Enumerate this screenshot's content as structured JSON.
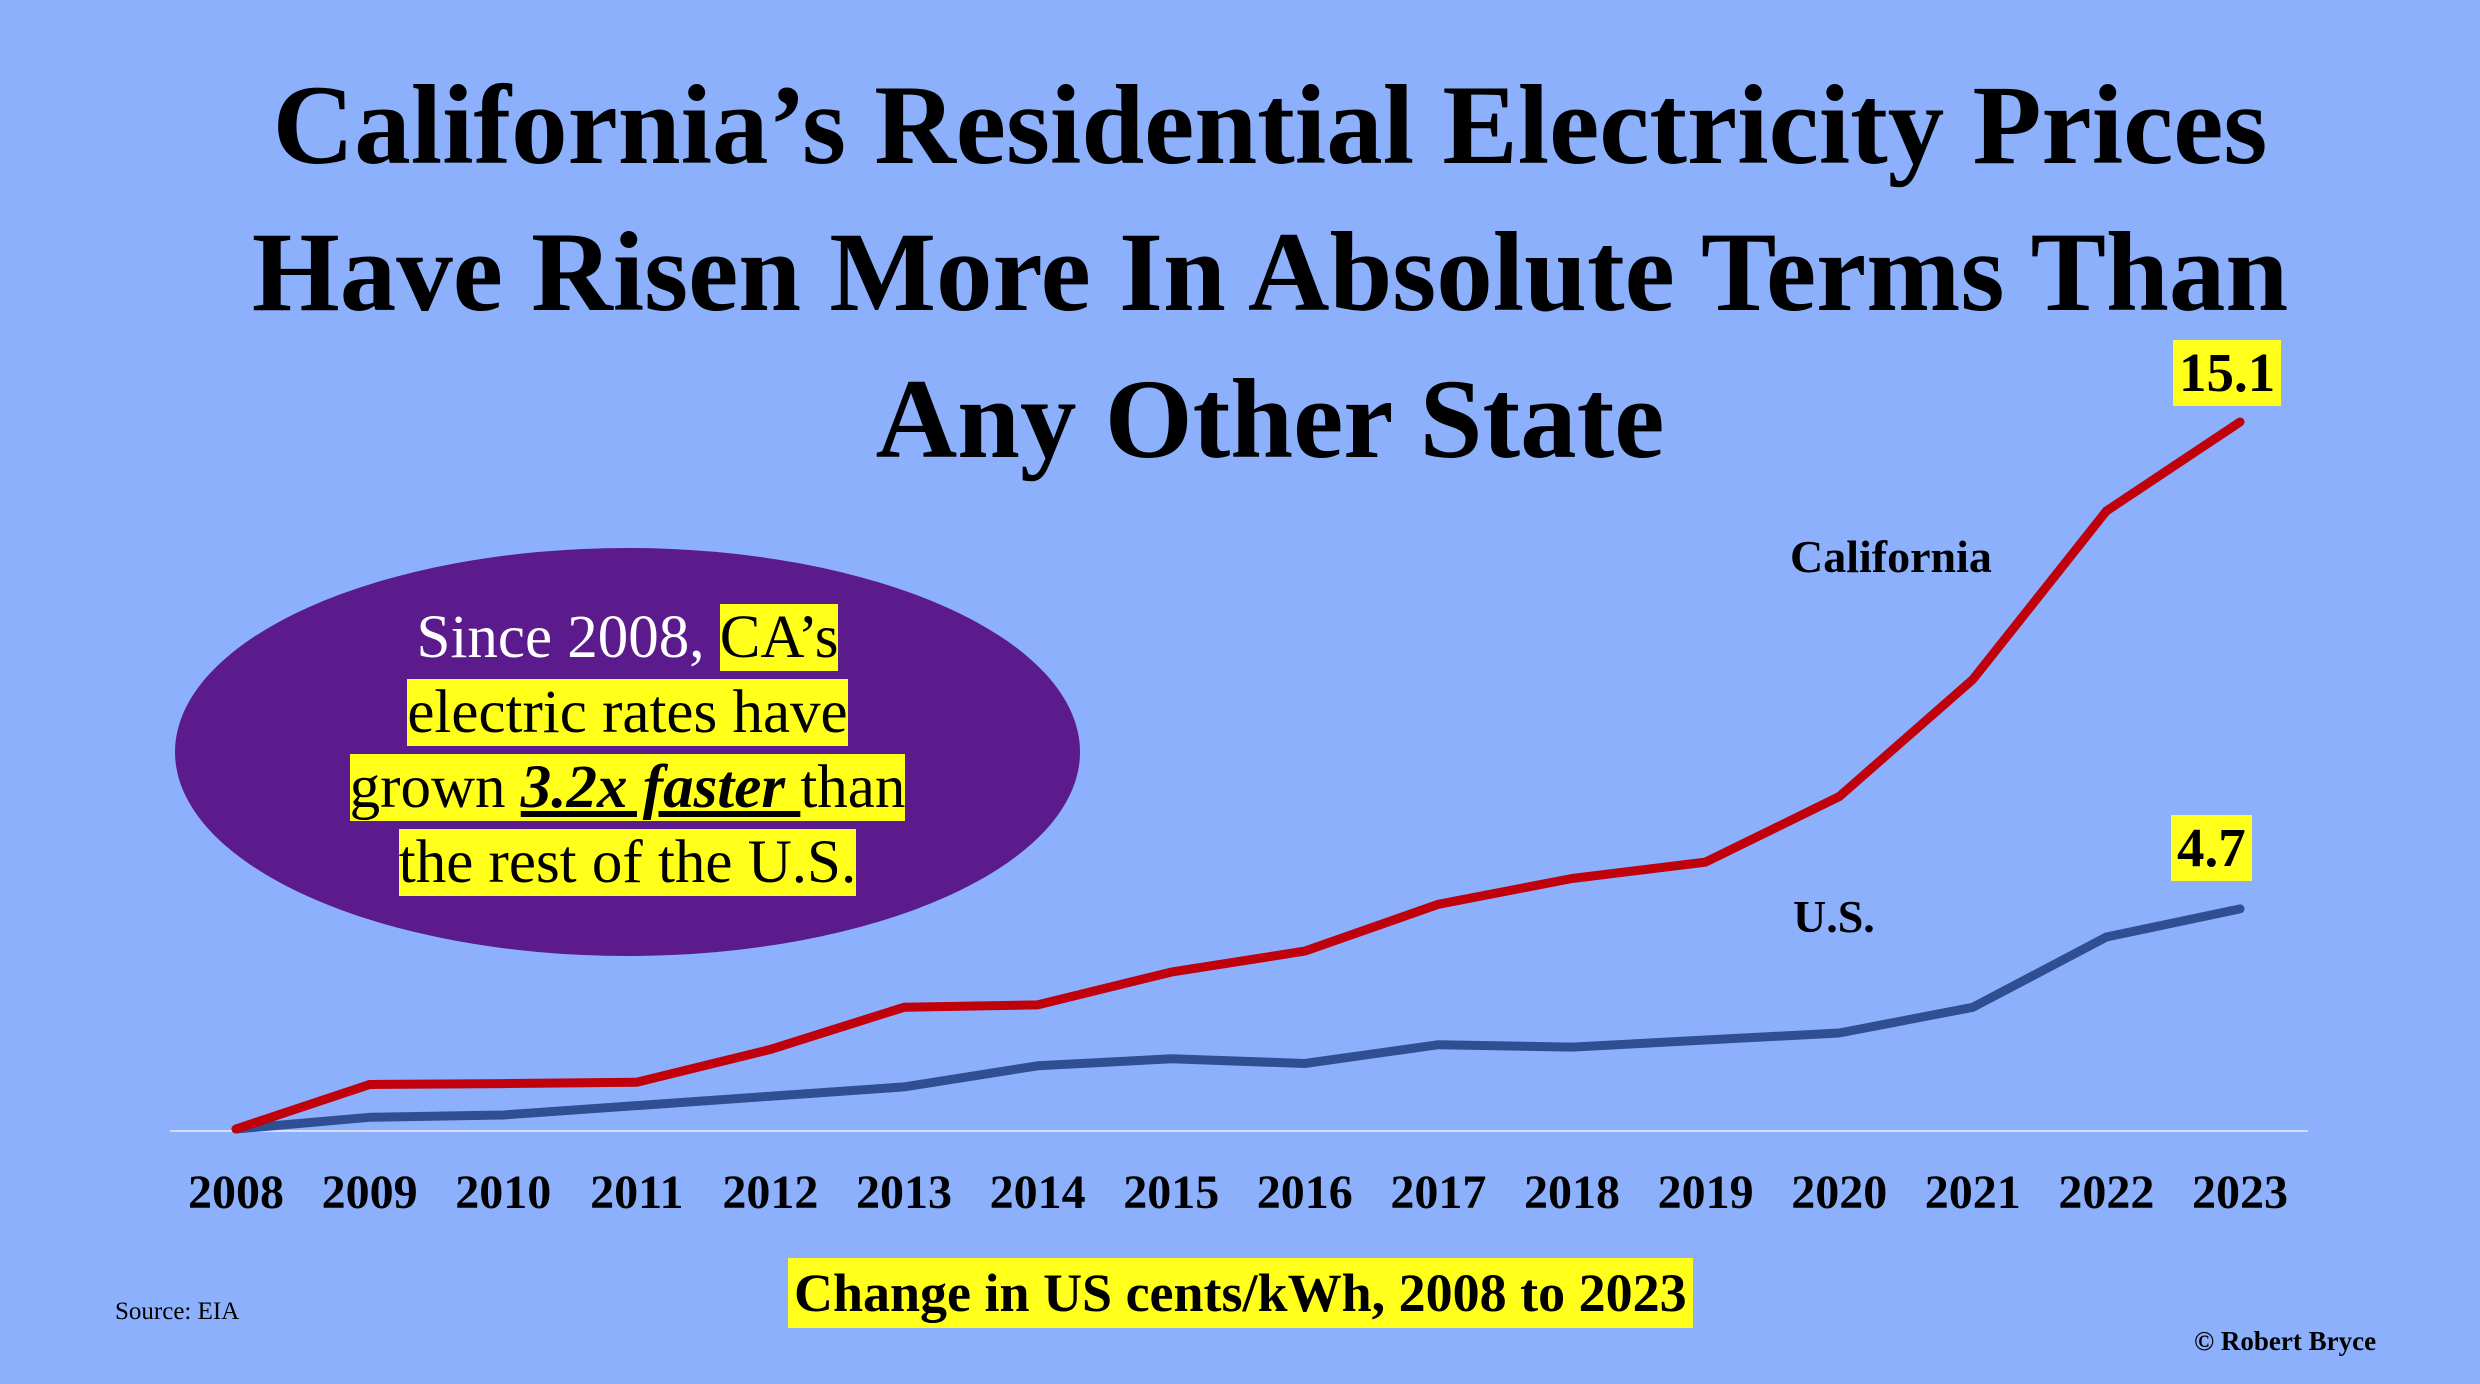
{
  "title_lines": [
    "California’s Residential Electricity Prices",
    "Have Risen More In Absolute Terms Than",
    "Any Other State"
  ],
  "callout": {
    "line1_plain": "Since 2008, ",
    "line1_highlight": "CA’s ",
    "line2": "electric rates have ",
    "line3_pre": "grown ",
    "line3_emph": "3.2x faster ",
    "line3_post": "than ",
    "line4": "the rest of the U.S."
  },
  "source": "Source: EIA",
  "credit": "© Robert Bryce",
  "colors": {
    "background": "#8cb0fc",
    "california": "#c0000b",
    "us": "#2f4f92",
    "callout_fill": "#5b1b8d",
    "highlight": "#ffff1a"
  },
  "chart_data": {
    "type": "line",
    "x": [
      "2008",
      "2009",
      "2010",
      "2011",
      "2012",
      "2013",
      "2014",
      "2015",
      "2016",
      "2017",
      "2018",
      "2019",
      "2020",
      "2021",
      "2022",
      "2023"
    ],
    "xlabel": "Change in US cents/kWh, 2008 to 2023",
    "ylabel": "",
    "ylim": [
      0,
      15.1
    ],
    "grid": false,
    "legend": "inline labels",
    "series": [
      {
        "name": "California",
        "end_label": "15.1",
        "values": [
          0,
          0.95,
          0.97,
          1.0,
          1.7,
          2.6,
          2.65,
          3.35,
          3.8,
          4.8,
          5.35,
          5.7,
          7.1,
          9.6,
          13.2,
          15.1
        ]
      },
      {
        "name": "U.S.",
        "end_label": "4.7",
        "values": [
          0,
          0.25,
          0.3,
          0.5,
          0.7,
          0.9,
          1.35,
          1.5,
          1.4,
          1.8,
          1.75,
          1.9,
          2.05,
          2.6,
          4.1,
          4.7
        ]
      }
    ]
  }
}
